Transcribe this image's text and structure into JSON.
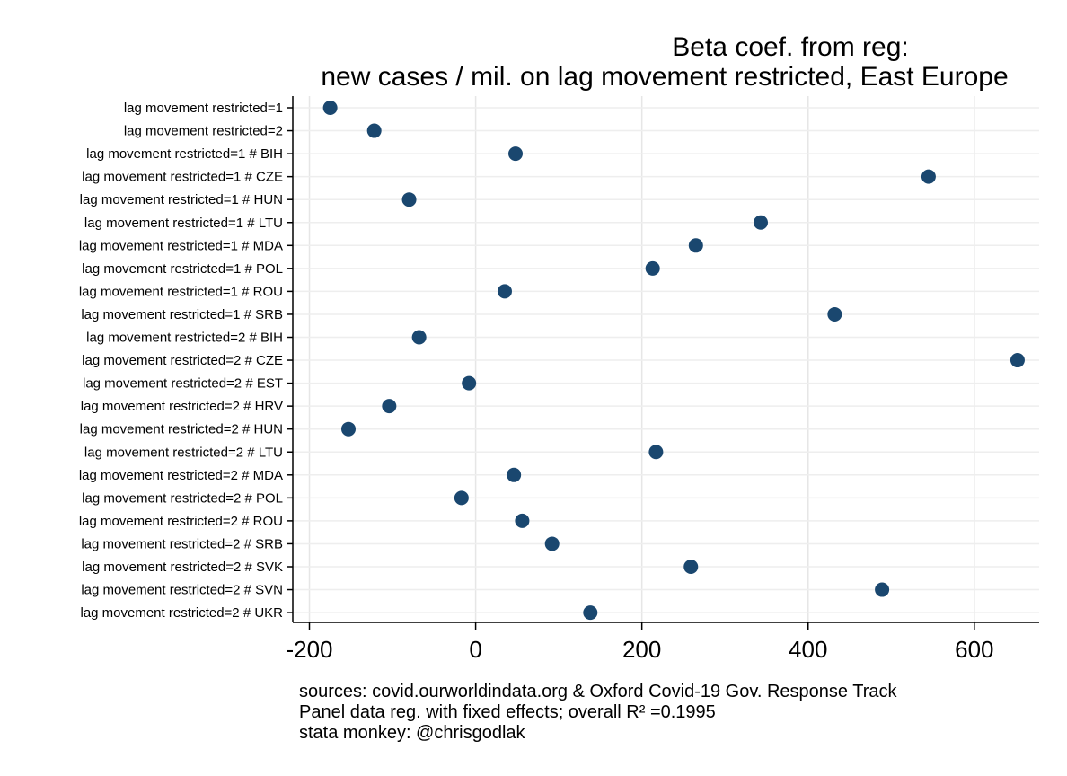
{
  "chart_data": {
    "type": "scatter",
    "title_lines": [
      "Beta coef. from reg:",
      "new cases / mil. on lag movement restricted, East Europe"
    ],
    "categories": [
      "lag movement restricted=1",
      "lag movement restricted=2",
      "lag movement restricted=1 # BIH",
      "lag movement restricted=1 # CZE",
      "lag movement restricted=1 # HUN",
      "lag movement restricted=1 # LTU",
      "lag movement restricted=1 # MDA",
      "lag movement restricted=1 # POL",
      "lag movement restricted=1 # ROU",
      "lag movement restricted=1 # SRB",
      "lag movement restricted=2 # BIH",
      "lag movement restricted=2 # CZE",
      "lag movement restricted=2 # EST",
      "lag movement restricted=2 # HRV",
      "lag movement restricted=2 # HUN",
      "lag movement restricted=2 # LTU",
      "lag movement restricted=2 # MDA",
      "lag movement restricted=2 # POL",
      "lag movement restricted=2 # ROU",
      "lag movement restricted=2 # SRB",
      "lag movement restricted=2 # SVK",
      "lag movement restricted=2 # SVN",
      "lag movement restricted=2 # UKR"
    ],
    "values": [
      -175,
      -122,
      48,
      545,
      -80,
      343,
      265,
      213,
      35,
      432,
      -68,
      652,
      -8,
      -104,
      -153,
      217,
      46,
      -17,
      56,
      92,
      259,
      489,
      138
    ],
    "xlim": [
      -220,
      678
    ],
    "xticks": [
      -200,
      0,
      200,
      400,
      600
    ],
    "xtick_labels": [
      "-200",
      "0",
      "200",
      "400",
      "600"
    ],
    "grid": true,
    "marker_color": "#1a476f",
    "notes": [
      "sources: covid.ourworldindata.org & Oxford Covid-19 Gov. Response Track",
      "Panel data reg. with fixed effects; overall R² =0.1995",
      "stata monkey: @chrisgodlak"
    ]
  }
}
